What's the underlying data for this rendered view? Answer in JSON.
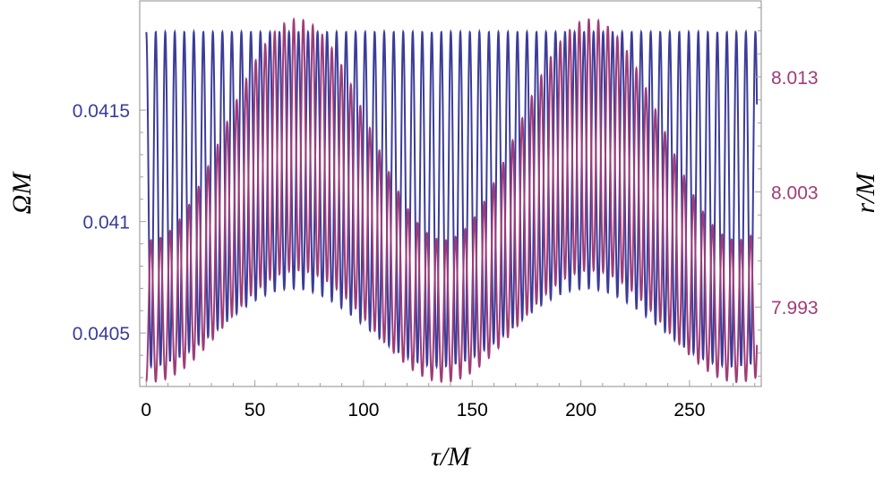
{
  "chart_data": {
    "type": "line",
    "title": "",
    "xlabel": "τ/M",
    "ylabel_left": "ΩM",
    "ylabel_right": "r/M",
    "xlim": [
      -3,
      283
    ],
    "ylim_left": [
      0.04026,
      0.04199
    ],
    "ylim_right": [
      7.9861,
      8.0196
    ],
    "x_ticks": [
      0,
      50,
      100,
      150,
      200,
      250
    ],
    "x_tick_labels": [
      "0",
      "50",
      "100",
      "150",
      "200",
      "250"
    ],
    "y_left_ticks": [
      0.0405,
      0.041,
      0.0415
    ],
    "y_left_tick_labels": [
      "0.0405",
      "0.041",
      "0.0415"
    ],
    "y_right_ticks": [
      7.993,
      8.003,
      8.013
    ],
    "y_right_tick_labels": [
      "7.993",
      "8.003",
      "8.013"
    ],
    "x_range": [
      0,
      281
    ],
    "colors": {
      "series_left": "#3c3c9a",
      "series_right": "#a03c78",
      "frame": "#a0a0a0"
    },
    "series": [
      {
        "axis": "left",
        "color": "#3c3c9a",
        "fast_period": 4.38,
        "slow_period": 135,
        "slow_phase_at_x0": 0.0,
        "peak_value": 0.04185,
        "trough_min": 0.04035,
        "trough_max": 0.0407,
        "peak_min": 0.04135,
        "x_start": 0,
        "y_start": 0.04185
      },
      {
        "axis": "right",
        "color": "#a03c78",
        "fast_period": 4.38,
        "slow_period": 135,
        "peak_min": 7.9988,
        "peak_max": 8.018,
        "trough_min": 7.9865,
        "trough_max": 7.9962,
        "x_start": 0,
        "y_start": 7.9865
      }
    ]
  }
}
